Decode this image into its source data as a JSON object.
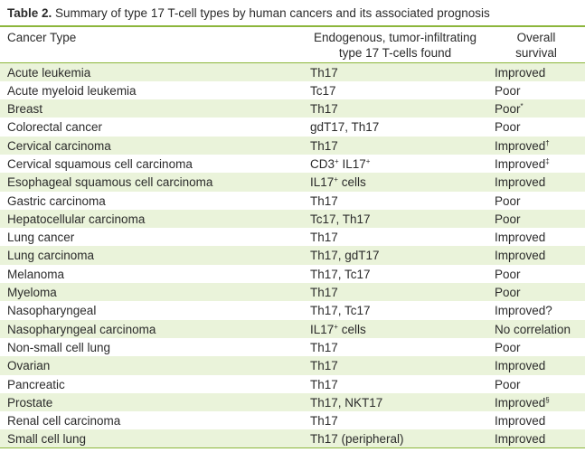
{
  "caption": {
    "label": "Table 2.",
    "text": " Summary of type 17 T-cell types by human cancers and its associated prognosis"
  },
  "headers": {
    "cancer_type": "Cancer Type",
    "cells_line1": "Endogenous, tumor-infiltrating",
    "cells_line2": "type 17 T-cells found",
    "survival": "Overall survival"
  },
  "rows": [
    {
      "cancer": "Acute leukemia",
      "cells": "Th17",
      "cells_sup": "",
      "cells_tail": "",
      "survival": "Improved",
      "survival_sup": ""
    },
    {
      "cancer": "Acute myeloid leukemia",
      "cells": "Tc17",
      "cells_sup": "",
      "cells_tail": "",
      "survival": "Poor",
      "survival_sup": ""
    },
    {
      "cancer": "Breast",
      "cells": "Th17",
      "cells_sup": "",
      "cells_tail": "",
      "survival": "Poor",
      "survival_sup": "*"
    },
    {
      "cancer": "Colorectal cancer",
      "cells": "gdT17, Th17",
      "cells_sup": "",
      "cells_tail": "",
      "survival": "Poor",
      "survival_sup": ""
    },
    {
      "cancer": "Cervical carcinoma",
      "cells": "Th17",
      "cells_sup": "",
      "cells_tail": "",
      "survival": "Improved",
      "survival_sup": "†"
    },
    {
      "cancer": "Cervical squamous cell carcinoma",
      "cells": "CD3",
      "cells_sup": "+",
      "cells_tail": " IL17",
      "cells_sup2": "+",
      "survival": "Improved",
      "survival_sup": "‡"
    },
    {
      "cancer": "Esophageal squamous cell carcinoma",
      "cells": "IL17",
      "cells_sup": "+",
      "cells_tail": " cells",
      "survival": "Improved",
      "survival_sup": ""
    },
    {
      "cancer": "Gastric carcinoma",
      "cells": "Th17",
      "cells_sup": "",
      "cells_tail": "",
      "survival": "Poor",
      "survival_sup": ""
    },
    {
      "cancer": "Hepatocellular carcinoma",
      "cells": "Tc17, Th17",
      "cells_sup": "",
      "cells_tail": "",
      "survival": "Poor",
      "survival_sup": ""
    },
    {
      "cancer": "Lung cancer",
      "cells": "Th17",
      "cells_sup": "",
      "cells_tail": "",
      "survival": "Improved",
      "survival_sup": ""
    },
    {
      "cancer": "Lung carcinoma",
      "cells": "Th17, gdT17",
      "cells_sup": "",
      "cells_tail": "",
      "survival": "Improved",
      "survival_sup": ""
    },
    {
      "cancer": "Melanoma",
      "cells": "Th17, Tc17",
      "cells_sup": "",
      "cells_tail": "",
      "survival": "Poor",
      "survival_sup": ""
    },
    {
      "cancer": "Myeloma",
      "cells": "Th17",
      "cells_sup": "",
      "cells_tail": "",
      "survival": "Poor",
      "survival_sup": ""
    },
    {
      "cancer": "Nasopharyngeal",
      "cells": "Th17, Tc17",
      "cells_sup": "",
      "cells_tail": "",
      "survival": "Improved?",
      "survival_sup": ""
    },
    {
      "cancer": "Nasopharyngeal carcinoma",
      "cells": "IL17",
      "cells_sup": "+",
      "cells_tail": " cells",
      "survival": "No correlation",
      "survival_sup": ""
    },
    {
      "cancer": "Non-small cell lung",
      "cells": "Th17",
      "cells_sup": "",
      "cells_tail": "",
      "survival": "Poor",
      "survival_sup": ""
    },
    {
      "cancer": "Ovarian",
      "cells": "Th17",
      "cells_sup": "",
      "cells_tail": "",
      "survival": "Improved",
      "survival_sup": ""
    },
    {
      "cancer": "Pancreatic",
      "cells": "Th17",
      "cells_sup": "",
      "cells_tail": "",
      "survival": "Poor",
      "survival_sup": ""
    },
    {
      "cancer": "Prostate",
      "cells": "Th17, NKT17",
      "cells_sup": "",
      "cells_tail": "",
      "survival": "Improved",
      "survival_sup": "§"
    },
    {
      "cancer": "Renal cell carcinoma",
      "cells": "Th17",
      "cells_sup": "",
      "cells_tail": "",
      "survival": "Improved",
      "survival_sup": ""
    },
    {
      "cancer": "Small cell lung",
      "cells": "Th17 (peripheral)",
      "cells_sup": "",
      "cells_tail": "",
      "survival": "Improved",
      "survival_sup": ""
    }
  ],
  "colors": {
    "accent_rule": "#8cb63c",
    "row_shade": "#eaf3da",
    "text": "#2b2b2b"
  }
}
